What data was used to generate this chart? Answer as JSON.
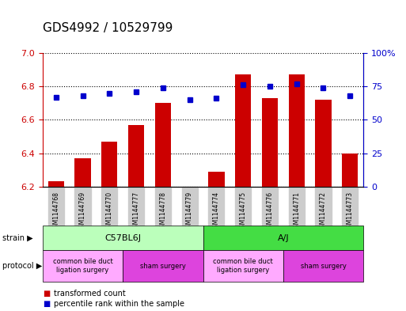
{
  "title": "GDS4992 / 10529799",
  "samples": [
    "GSM1144768",
    "GSM1144769",
    "GSM1144770",
    "GSM1144777",
    "GSM1144778",
    "GSM1144779",
    "GSM1144774",
    "GSM1144775",
    "GSM1144776",
    "GSM1144771",
    "GSM1144772",
    "GSM1144773"
  ],
  "bar_values": [
    6.23,
    6.37,
    6.47,
    6.57,
    6.7,
    6.2,
    6.29,
    6.87,
    6.73,
    6.87,
    6.72,
    6.4
  ],
  "bar_base": 6.2,
  "dot_values": [
    67,
    68,
    70,
    71,
    74,
    65,
    66,
    76,
    75,
    77,
    74,
    68
  ],
  "ylim_left": [
    6.2,
    7.0
  ],
  "ylim_right": [
    0,
    100
  ],
  "yticks_left": [
    6.2,
    6.4,
    6.6,
    6.8,
    7.0
  ],
  "yticks_right": [
    0,
    25,
    50,
    75,
    100
  ],
  "ytick_labels_right": [
    "0",
    "25",
    "50",
    "75",
    "100%"
  ],
  "bar_color": "#cc0000",
  "dot_color": "#0000cc",
  "strain_labels": [
    {
      "text": "C57BL6J",
      "start": 0,
      "end": 5,
      "color": "#bbffbb"
    },
    {
      "text": "A/J",
      "start": 6,
      "end": 11,
      "color": "#44dd44"
    }
  ],
  "protocol_labels": [
    {
      "text": "common bile duct\nligation surgery",
      "start": 0,
      "end": 2,
      "color": "#ffaaff"
    },
    {
      "text": "sham surgery",
      "start": 3,
      "end": 5,
      "color": "#dd44dd"
    },
    {
      "text": "common bile duct\nligation surgery",
      "start": 6,
      "end": 8,
      "color": "#ffaaff"
    },
    {
      "text": "sham surgery",
      "start": 9,
      "end": 11,
      "color": "#dd44dd"
    }
  ],
  "tick_fontsize": 8,
  "title_fontsize": 11
}
